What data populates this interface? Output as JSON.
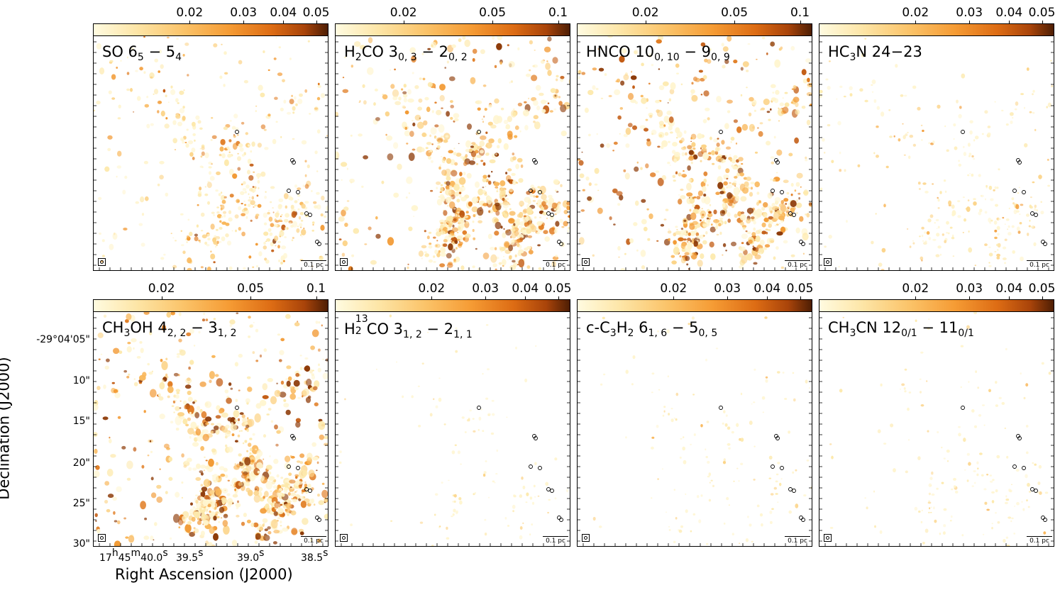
{
  "panels": [
    {
      "title": [
        "SO 6",
        [
          "sub",
          "5"
        ],
        " − 5",
        [
          "sub",
          "4"
        ]
      ],
      "cbar_ticks": [
        "0.02",
        "0.03",
        "0.04",
        "0.05"
      ],
      "intensity": 0.45
    },
    {
      "title": [
        "H",
        [
          "sub",
          "2"
        ],
        "CO 3",
        [
          "sub",
          "0, 3"
        ],
        " − 2",
        [
          "sub",
          "0, 2"
        ]
      ],
      "cbar_ticks": [
        "0.02",
        "0.05",
        "0.1"
      ],
      "intensity": 0.8
    },
    {
      "title": [
        "HNCO 10",
        [
          "sub",
          "0, 10"
        ],
        " − 9",
        [
          "sub",
          "0, 9"
        ]
      ],
      "cbar_ticks": [
        "0.02",
        "0.05",
        "0.1"
      ],
      "intensity": 0.75
    },
    {
      "title": [
        "HC",
        [
          "sub",
          "3"
        ],
        "N 24−23"
      ],
      "cbar_ticks": [
        "0.02",
        "0.03",
        "0.04",
        "0.05"
      ],
      "intensity": 0.2
    },
    {
      "title": [
        "CH",
        [
          "sub",
          "3"
        ],
        "OH 4",
        [
          "sub",
          "2, 2"
        ],
        " − 3",
        [
          "sub",
          "1, 2"
        ]
      ],
      "cbar_ticks": [
        "0.02",
        "0.05",
        "0.1"
      ],
      "intensity": 0.85
    },
    {
      "title": [
        "H",
        [
          "subsup",
          "2",
          "13"
        ],
        "CO 3",
        [
          "sub",
          "1, 2"
        ],
        " − 2",
        [
          "sub",
          "1, 1"
        ]
      ],
      "cbar_ticks": [
        "0.02",
        "0.03",
        "0.04",
        "0.05"
      ],
      "intensity": 0.03
    },
    {
      "title": [
        "c-C",
        [
          "sub",
          "3"
        ],
        "H",
        [
          "sub",
          "2"
        ],
        " 6",
        [
          "sub",
          "1, 6"
        ],
        " − 5",
        [
          "sub",
          "0, 5"
        ]
      ],
      "cbar_ticks": [
        "0.02",
        "0.03",
        "0.04",
        "0.05"
      ],
      "intensity": 0.06
    },
    {
      "title": [
        "CH",
        [
          "sub",
          "3"
        ],
        "CN 12",
        [
          "sub",
          "0/1"
        ],
        " − 11",
        [
          "sub",
          "0/1"
        ]
      ],
      "cbar_ticks": [
        "0.02",
        "0.03",
        "0.04",
        "0.05"
      ],
      "intensity": 0.08
    }
  ],
  "scalebar_label": "0.1 pc",
  "y_axis": {
    "title": "Declination (J2000)",
    "ticks": [
      "-29°04'05\"",
      "10\"",
      "15\"",
      "20\"",
      "25\"",
      "30\""
    ]
  },
  "x_axis": {
    "title": "Right Ascension (J2000)",
    "ticks": [
      [
        "17",
        [
          "sup",
          "h"
        ],
        "45",
        [
          "sup",
          "m"
        ],
        "40.0",
        [
          "sup",
          "s"
        ]
      ],
      [
        "39.5",
        [
          "sup",
          "s"
        ]
      ],
      [
        "39.0",
        [
          "sup",
          "s"
        ]
      ],
      [
        "38.5",
        [
          "sup",
          "s"
        ]
      ]
    ]
  },
  "colors": {
    "colormap_low": "#fffbe0",
    "colormap_high": "#4e1e04"
  }
}
